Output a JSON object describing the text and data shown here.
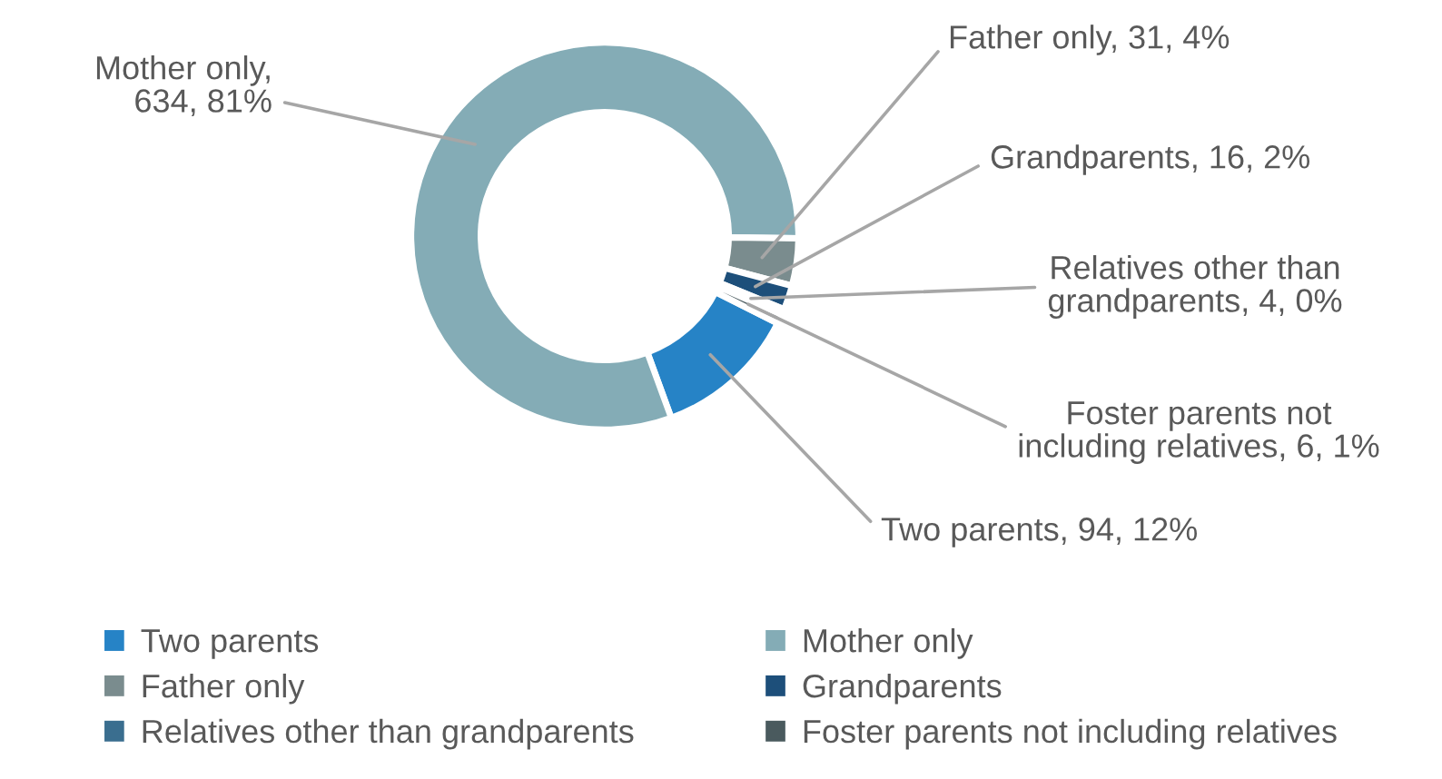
{
  "chart_data": {
    "type": "donut",
    "categories": [
      "Two parents",
      "Mother only",
      "Father only",
      "Grandparents",
      "Relatives other than grandparents",
      "Foster parents not including relatives"
    ],
    "values": [
      94,
      634,
      31,
      16,
      4,
      6
    ],
    "value_labels": [
      "Two parents, 94, 12%",
      "Mother only, 634, 81%",
      "Father only, 31, 4%",
      "Grandparents, 16, 2%",
      "Relatives other than grandparents, 4, 0%",
      "Foster parents not including relatives, 6, 1%"
    ],
    "colors": [
      "#2683c6",
      "#84acb6",
      "#7a8c8e",
      "#1d4f7a",
      "#3a6e8f",
      "#4a5a5e"
    ],
    "legend": "bottom"
  }
}
